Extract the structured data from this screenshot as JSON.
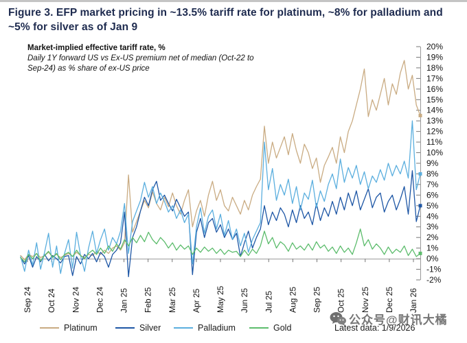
{
  "figure": {
    "title": "Figure 3. EFP market pricing in ~13.5% tariff rate for platinum, ~8% for palladium and ~5% for silver as of Jan 9"
  },
  "chart_header": {
    "subtitle_bold": "Market-implied effective tariff rate, %",
    "subtitle_italic": "Daily 1Y forward US vs Ex-US premium net of median (Oct-22 to Sep-24) as % share of ex-US price"
  },
  "footer": {
    "latest_data_label": "Latest data: 1/9/2026",
    "watermark_text": "公众号@财讯大橘"
  },
  "chart_data": {
    "type": "line",
    "title": "EFP market pricing in ~13.5% tariff rate for platinum, ~8% for palladium and ~5% for silver as of Jan 9",
    "ylabel": "Market-implied effective tariff rate, %",
    "xlabel": "",
    "note": "Daily 1Y forward US vs Ex-US premium net of median (Oct-22 to Sep-24) as % share of ex-US price",
    "grid": false,
    "legend_position": "bottom",
    "y_axis_side": "right",
    "ylim": [
      -2,
      20
    ],
    "y_tick_step": 1,
    "y_tick_suffix": "%",
    "x_tick_labels": [
      "Sep 24",
      "Oct 24",
      "Nov 24",
      "Dec 24",
      "Jan 25",
      "Feb 25",
      "Mar 25",
      "Apr 25",
      "May 25",
      "Jun 25",
      "Jul 25",
      "Aug 25",
      "Sep 25",
      "Oct 25",
      "Nov 25",
      "Dec 25",
      "Jan 26"
    ],
    "series": [
      {
        "name": "Platinum",
        "color": "#c9ab82",
        "end_value": 13.5,
        "values": [
          0.3,
          -0.1,
          0.4,
          0.2,
          0.5,
          0.1,
          0.3,
          0.6,
          0.2,
          0.4,
          0.1,
          0.3,
          0.5,
          0.2,
          0.6,
          0.3,
          0.1,
          0.4,
          0.3,
          0.7,
          0.4,
          0.8,
          0.5,
          1.0,
          1.2,
          0.8,
          1.5,
          7.9,
          2.5,
          3.5,
          4.5,
          5.5,
          4.8,
          6.3,
          5.2,
          4.6,
          5.8,
          4.9,
          6.2,
          5.0,
          4.2,
          5.5,
          6.5,
          3.0,
          4.5,
          5.5,
          4.0,
          6.0,
          7.3,
          5.5,
          6.5,
          5.0,
          4.5,
          5.8,
          5.0,
          4.2,
          5.5,
          4.6,
          6.0,
          6.8,
          7.5,
          12.5,
          9.0,
          11.0,
          9.5,
          10.5,
          11.5,
          9.8,
          11.8,
          10.2,
          9.0,
          10.8,
          10.0,
          8.5,
          9.5,
          7.2,
          8.8,
          9.6,
          10.5,
          9.0,
          11.5,
          10.0,
          12.0,
          13.0,
          14.5,
          16.0,
          17.9,
          13.4,
          15.0,
          14.0,
          15.5,
          17.0,
          14.5,
          16.5,
          15.5,
          17.5,
          18.7,
          16.0,
          17.3,
          14.5,
          13.5
        ]
      },
      {
        "name": "Silver",
        "color": "#1d56a5",
        "end_value": 5.0,
        "values": [
          0.1,
          -0.5,
          0.3,
          -0.8,
          0.2,
          -0.3,
          0.4,
          -0.2,
          0.3,
          0.0,
          -0.4,
          0.2,
          0.3,
          -1.6,
          0.2,
          -0.5,
          0.4,
          0.0,
          0.5,
          -0.3,
          0.6,
          0.2,
          -0.8,
          0.4,
          0.8,
          1.5,
          4.4,
          -1.7,
          2.0,
          3.0,
          4.5,
          5.8,
          5.0,
          6.5,
          7.3,
          5.5,
          6.0,
          5.2,
          4.5,
          5.6,
          4.8,
          4.0,
          4.4,
          -1.5,
          2.5,
          3.8,
          2.0,
          3.4,
          3.8,
          2.5,
          3.2,
          2.0,
          2.8,
          1.8,
          2.4,
          0.2,
          1.5,
          2.6,
          1.0,
          2.0,
          2.8,
          5.0,
          3.2,
          4.4,
          3.6,
          4.8,
          4.2,
          3.0,
          4.6,
          3.4,
          5.0,
          3.8,
          4.4,
          3.2,
          5.2,
          3.6,
          4.8,
          4.0,
          5.4,
          4.2,
          5.8,
          4.6,
          6.2,
          5.0,
          6.4,
          4.6,
          5.6,
          6.6,
          4.8,
          5.8,
          6.2,
          4.4,
          5.4,
          6.0,
          4.6,
          5.6,
          6.8,
          4.2,
          8.3,
          3.5,
          5.0
        ]
      },
      {
        "name": "Palladium",
        "color": "#5aaede",
        "end_value": 8.0,
        "values": [
          0.2,
          -1.2,
          0.8,
          -0.6,
          1.5,
          -1.0,
          0.6,
          2.4,
          -0.8,
          1.2,
          -1.4,
          0.5,
          1.8,
          -0.9,
          2.5,
          0.3,
          -1.2,
          1.0,
          2.6,
          0.5,
          1.8,
          2.8,
          0.8,
          2.0,
          1.4,
          2.6,
          5.2,
          0.5,
          3.5,
          4.5,
          5.5,
          7.2,
          5.8,
          6.8,
          5.2,
          6.2,
          5.4,
          4.4,
          5.0,
          3.8,
          4.6,
          3.4,
          4.2,
          -0.5,
          3.0,
          4.8,
          2.4,
          4.0,
          4.6,
          2.8,
          4.2,
          2.2,
          3.6,
          1.8,
          2.8,
          1.2,
          2.4,
          0.6,
          1.8,
          2.6,
          3.4,
          11.0,
          6.5,
          8.5,
          5.5,
          7.0,
          6.0,
          7.5,
          5.2,
          6.8,
          4.6,
          6.2,
          5.6,
          7.4,
          4.8,
          6.4,
          5.4,
          7.0,
          8.0,
          6.6,
          9.4,
          7.2,
          8.6,
          7.6,
          8.8,
          7.0,
          8.2,
          6.6,
          7.8,
          7.2,
          8.4,
          7.4,
          9.0,
          7.8,
          8.8,
          8.0,
          9.2,
          7.6,
          13.0,
          6.5,
          8.0
        ]
      },
      {
        "name": "Gold",
        "color": "#5cbc6c",
        "end_value": 0.5,
        "values": [
          0.1,
          -0.3,
          0.4,
          0.0,
          0.5,
          -0.2,
          0.3,
          0.7,
          0.1,
          0.5,
          -0.1,
          0.4,
          0.6,
          0.2,
          0.8,
          0.3,
          0.0,
          0.5,
          0.8,
          0.4,
          1.0,
          0.5,
          1.2,
          0.7,
          1.4,
          0.9,
          1.8,
          1.2,
          2.0,
          1.5,
          2.2,
          1.6,
          2.5,
          1.8,
          1.4,
          2.0,
          1.6,
          1.0,
          1.5,
          0.8,
          1.3,
          0.9,
          1.2,
          0.4,
          1.0,
          0.6,
          1.1,
          0.7,
          1.0,
          0.5,
          0.9,
          0.4,
          0.8,
          0.6,
          0.7,
          0.2,
          0.8,
          0.3,
          0.9,
          0.5,
          1.2,
          2.6,
          1.4,
          2.0,
          1.0,
          1.6,
          1.3,
          0.7,
          1.5,
          0.9,
          1.2,
          0.8,
          1.4,
          0.8,
          1.6,
          1.0,
          1.3,
          0.7,
          1.1,
          0.5,
          1.2,
          0.6,
          1.0,
          0.4,
          1.5,
          2.8,
          1.2,
          1.8,
          0.9,
          1.4,
          1.0,
          0.4,
          1.1,
          0.5,
          0.9,
          0.6,
          1.2,
          0.3,
          0.9,
          0.2,
          0.5
        ]
      }
    ]
  }
}
